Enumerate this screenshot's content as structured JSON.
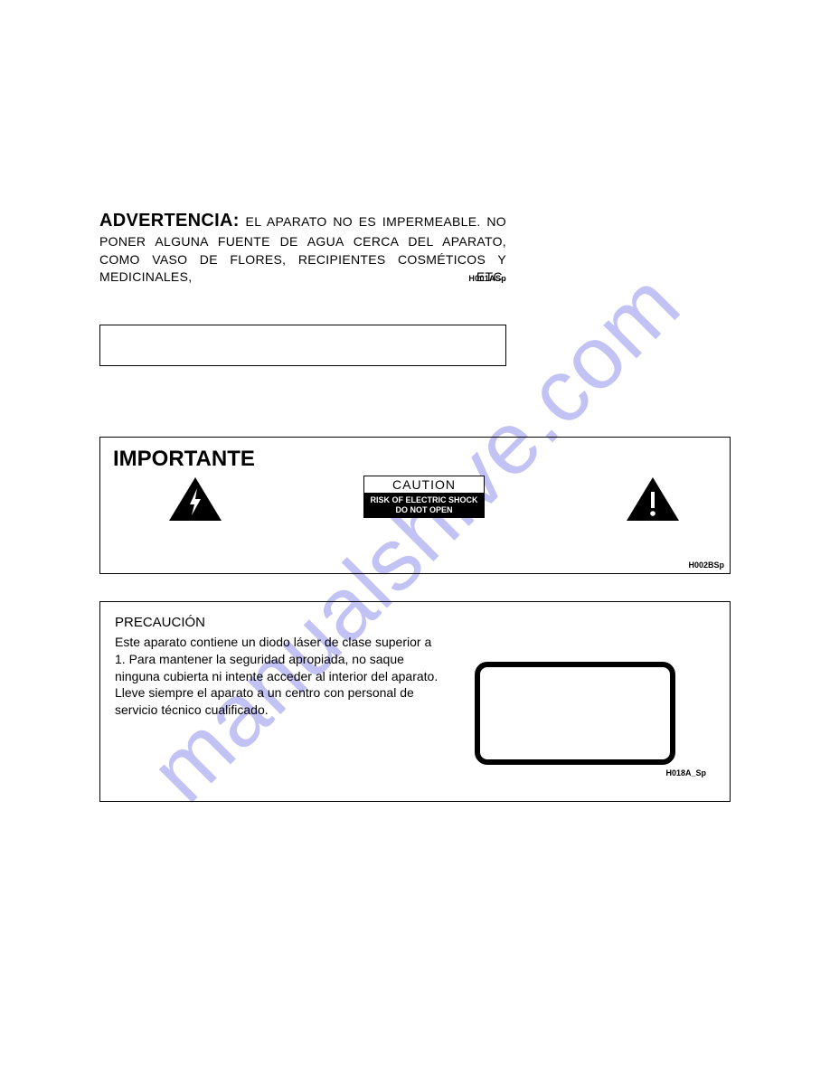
{
  "watermark": "manualshive.com",
  "advertencia": {
    "title": "ADVERTENCIA:",
    "body": " EL APARATO NO ES IMPERMEABLE. NO PONER ALGUNA FUENTE DE AGUA CERCA DEL APARATO, COMO VASO DE FLORES, RECIPIENTES COSMÉTICOS Y MEDICINALES, ETC.",
    "code": "H001ASp"
  },
  "importante": {
    "title": "IMPORTANTE",
    "caution_top": "CAUTION",
    "caution_line1": "RISK OF ELECTRIC SHOCK",
    "caution_line2": "DO NOT OPEN",
    "code": "H002BSp"
  },
  "precaucion": {
    "title": "PRECAUCIÓN",
    "body": "Este aparato contiene un diodo láser de clase superior a 1. Para mantener la seguridad apropiada, no saque ninguna cubierta ni intente acceder al interior del aparato.\nLleve siempre el aparato a un centro con personal de servicio técnico cualificado.",
    "code": "H018A_Sp"
  },
  "colors": {
    "watermark": "rgba(120,120,230,0.45)",
    "text": "#000000",
    "background": "#ffffff"
  }
}
